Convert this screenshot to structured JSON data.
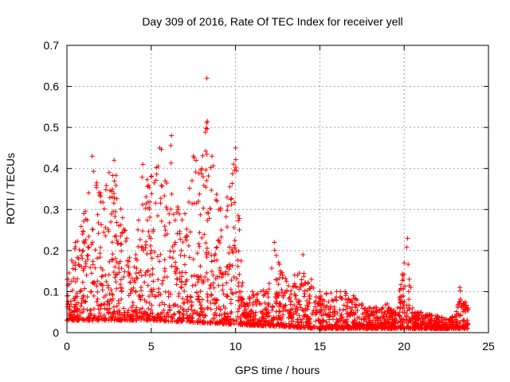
{
  "chart_data": {
    "type": "scatter",
    "title": "Day 309 of 2016, Rate Of TEC Index for receiver yell",
    "xlabel": "GPS time / hours",
    "ylabel": "ROTI / TECUs",
    "xlim": [
      0,
      25
    ],
    "ylim": [
      0,
      0.7
    ],
    "xticks": [
      0,
      5,
      10,
      15,
      20,
      25
    ],
    "xtick_labels": [
      "0",
      "5",
      "10",
      "15",
      "20",
      "25"
    ],
    "yticks": [
      0,
      0.1,
      0.2,
      0.3,
      0.4,
      0.5,
      0.6,
      0.7
    ],
    "ytick_labels": [
      "0",
      "0.1",
      "0.2",
      "0.3",
      "0.4",
      "0.5",
      "0.6",
      "0.7"
    ],
    "grid": true,
    "marker": "plus",
    "color": "#ff0000",
    "series": [
      {
        "name": "ROTI",
        "envelope": [
          {
            "x": 0.0,
            "y": 0.13
          },
          {
            "x": 0.5,
            "y": 0.22
          },
          {
            "x": 1.0,
            "y": 0.29
          },
          {
            "x": 1.5,
            "y": 0.43
          },
          {
            "x": 2.0,
            "y": 0.34
          },
          {
            "x": 2.5,
            "y": 0.39
          },
          {
            "x": 2.8,
            "y": 0.42
          },
          {
            "x": 3.3,
            "y": 0.28
          },
          {
            "x": 4.0,
            "y": 0.16
          },
          {
            "x": 4.5,
            "y": 0.41
          },
          {
            "x": 5.0,
            "y": 0.38
          },
          {
            "x": 5.5,
            "y": 0.45
          },
          {
            "x": 6.2,
            "y": 0.48
          },
          {
            "x": 6.6,
            "y": 0.3
          },
          {
            "x": 7.0,
            "y": 0.29
          },
          {
            "x": 7.5,
            "y": 0.43
          },
          {
            "x": 8.0,
            "y": 0.4
          },
          {
            "x": 8.3,
            "y": 0.62
          },
          {
            "x": 8.6,
            "y": 0.43
          },
          {
            "x": 9.0,
            "y": 0.3
          },
          {
            "x": 9.5,
            "y": 0.33
          },
          {
            "x": 10.0,
            "y": 0.45
          },
          {
            "x": 10.5,
            "y": 0.07
          },
          {
            "x": 11.0,
            "y": 0.1
          },
          {
            "x": 11.5,
            "y": 0.1
          },
          {
            "x": 12.0,
            "y": 0.12
          },
          {
            "x": 12.3,
            "y": 0.22
          },
          {
            "x": 12.8,
            "y": 0.14
          },
          {
            "x": 13.5,
            "y": 0.14
          },
          {
            "x": 14.0,
            "y": 0.19
          },
          {
            "x": 14.5,
            "y": 0.13
          },
          {
            "x": 15.0,
            "y": 0.1
          },
          {
            "x": 16.0,
            "y": 0.1
          },
          {
            "x": 16.5,
            "y": 0.1
          },
          {
            "x": 17.0,
            "y": 0.09
          },
          {
            "x": 17.5,
            "y": 0.07
          },
          {
            "x": 18.0,
            "y": 0.06
          },
          {
            "x": 19.0,
            "y": 0.07
          },
          {
            "x": 19.5,
            "y": 0.05
          },
          {
            "x": 20.0,
            "y": 0.17
          },
          {
            "x": 20.2,
            "y": 0.23
          },
          {
            "x": 20.5,
            "y": 0.06
          },
          {
            "x": 21.0,
            "y": 0.05
          },
          {
            "x": 22.0,
            "y": 0.04
          },
          {
            "x": 23.0,
            "y": 0.04
          },
          {
            "x": 23.3,
            "y": 0.11
          },
          {
            "x": 23.8,
            "y": 0.06
          }
        ],
        "baseline": [
          {
            "x": 0.0,
            "y": 0.03
          },
          {
            "x": 5.0,
            "y": 0.03
          },
          {
            "x": 10.0,
            "y": 0.02
          },
          {
            "x": 15.0,
            "y": 0.01
          },
          {
            "x": 20.0,
            "y": 0.01
          },
          {
            "x": 23.8,
            "y": 0.01
          }
        ],
        "x_range": [
          0.0,
          23.8
        ]
      }
    ]
  }
}
